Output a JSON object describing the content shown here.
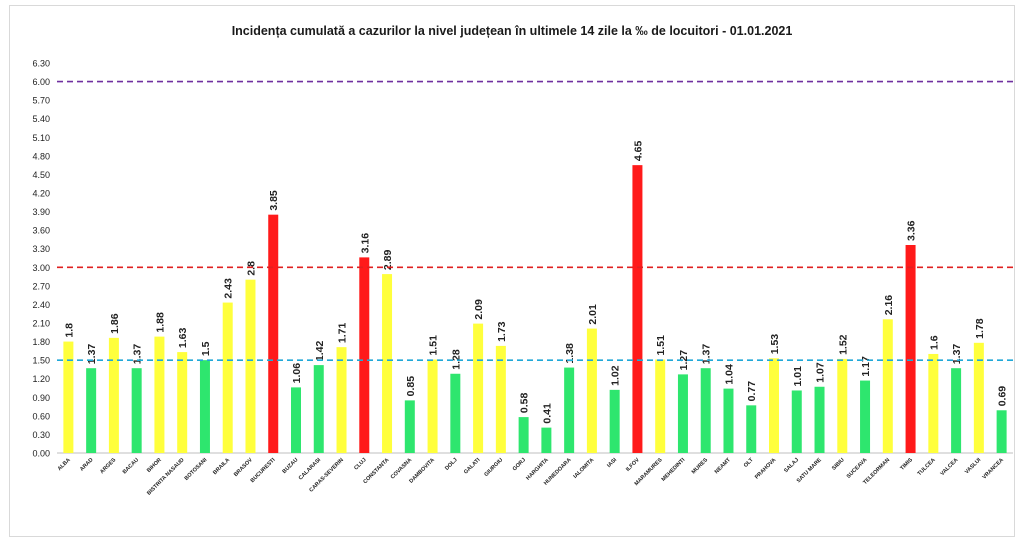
{
  "chart_data": {
    "type": "bar",
    "title": "Incidența cumulată a cazurilor la nivel județean în ultimele 14 zile la ‰ de locuitori - 01.01.2021",
    "ylim": [
      0,
      6.3
    ],
    "yticks": [
      "0.00",
      "0.30",
      "0.60",
      "0.90",
      "1.20",
      "1.50",
      "1.80",
      "2.10",
      "2.40",
      "2.70",
      "3.00",
      "3.30",
      "3.60",
      "3.90",
      "4.20",
      "4.50",
      "4.80",
      "5.10",
      "5.40",
      "5.70",
      "6.00",
      "6.30"
    ],
    "grid": false,
    "legend": "none",
    "categories": [
      "ALBA",
      "ARAD",
      "ARGES",
      "BACAU",
      "BIHOR",
      "BISTRITA NASAUD",
      "BOTOSANI",
      "BRAILA",
      "BRASOV",
      "BUCURESTI",
      "BUZAU",
      "CALARASI",
      "CARAS-SEVERIN",
      "CLUJ",
      "CONSTANTA",
      "COVASNA",
      "DAMBOVITA",
      "DOLJ",
      "GALATI",
      "GIURGIU",
      "GORJ",
      "HARGHITA",
      "HUNEDOARA",
      "IALOMITA",
      "IASI",
      "ILFOV",
      "MARAMURES",
      "MEHEDINTI",
      "MURES",
      "NEAMT",
      "OLT",
      "PRAHOVA",
      "SALAJ",
      "SATU MARE",
      "SIBIU",
      "SUCEAVA",
      "TELEORMAN",
      "TIMIS",
      "TULCEA",
      "VALCEA",
      "VASLUI",
      "VRANCEA"
    ],
    "values": [
      1.8,
      1.37,
      1.86,
      1.37,
      1.88,
      1.63,
      1.5,
      2.43,
      2.8,
      3.85,
      1.06,
      1.42,
      1.71,
      3.16,
      2.89,
      0.85,
      1.51,
      1.28,
      2.09,
      1.73,
      0.58,
      0.41,
      1.38,
      2.01,
      1.02,
      4.65,
      1.51,
      1.27,
      1.37,
      1.04,
      0.77,
      1.53,
      1.01,
      1.07,
      1.52,
      1.17,
      2.16,
      3.36,
      1.6,
      1.37,
      1.78,
      0.69
    ],
    "value_labels": [
      "1.8",
      "1.37",
      "1.86",
      "1.37",
      "1.88",
      "1.63",
      "1.5",
      "2.43",
      "2.8",
      "3.85",
      "1.06",
      "1.42",
      "1.71",
      "3.16",
      "2.89",
      "0.85",
      "1.51",
      "1.28",
      "2.09",
      "1.73",
      "0.58",
      "0.41",
      "1.38",
      "2.01",
      "1.02",
      "4.65",
      "1.51",
      "1.27",
      "1.37",
      "1.04",
      "0.77",
      "1.53",
      "1.01",
      "1.07",
      "1.52",
      "1.17",
      "2.16",
      "3.36",
      "1.6",
      "1.37",
      "1.78",
      "0.69"
    ],
    "thresholds": [
      {
        "value": 6.0,
        "color": "#7030a0",
        "style": "dashed"
      },
      {
        "value": 3.0,
        "color": "#e02020",
        "style": "dashed"
      },
      {
        "value": 1.5,
        "color": "#1fa8d8",
        "style": "dashed"
      }
    ],
    "colors": {
      "green": "#2ee66e",
      "yellow": "#ffff3c",
      "red": "#ff1a1a"
    }
  }
}
